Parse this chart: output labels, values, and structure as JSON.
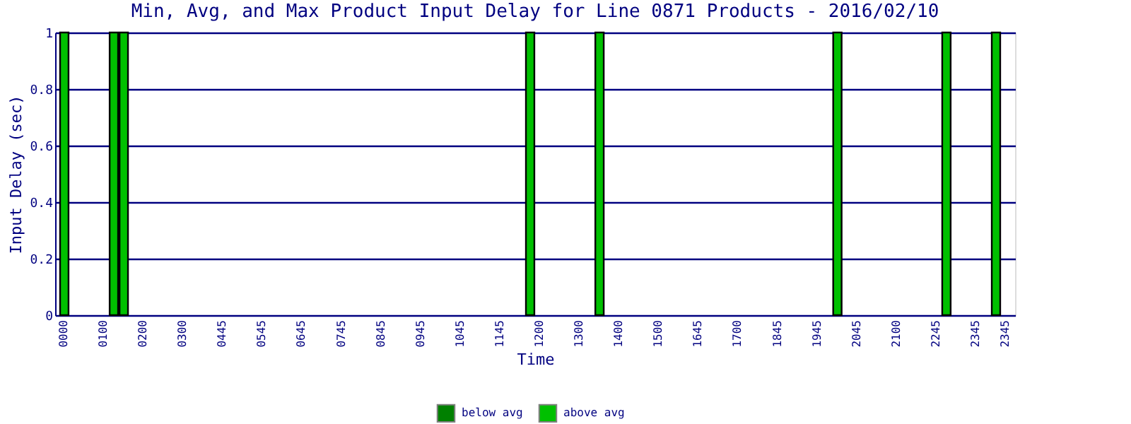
{
  "chart_data": {
    "type": "bar",
    "title": "Min, Avg, and Max Product Input Delay for Line 0871 Products - 2016/02/10",
    "xlabel": "Time",
    "ylabel": "Input Delay (sec)",
    "categories": [
      "0000",
      null,
      null,
      null,
      "0100",
      null,
      null,
      null,
      "0200",
      null,
      null,
      null,
      "0300",
      null,
      null,
      null,
      "0445",
      null,
      null,
      null,
      "0545",
      null,
      null,
      null,
      "0645",
      null,
      null,
      null,
      "0745",
      null,
      null,
      null,
      "0845",
      null,
      null,
      null,
      "0945",
      null,
      null,
      null,
      "1045",
      null,
      null,
      null,
      "1145",
      null,
      null,
      null,
      "1200",
      null,
      null,
      null,
      "1300",
      null,
      null,
      null,
      "1400",
      null,
      null,
      null,
      "1500",
      null,
      null,
      null,
      "1645",
      null,
      null,
      null,
      "1700",
      null,
      null,
      null,
      "1845",
      null,
      null,
      null,
      "1945",
      null,
      null,
      null,
      "2045",
      null,
      null,
      null,
      "2100",
      null,
      null,
      null,
      "2245",
      null,
      null,
      null,
      "2345",
      null,
      null,
      "2345"
    ],
    "series": [
      {
        "name": "below avg",
        "color": "#008000",
        "values": [
          null,
          null,
          null,
          null,
          null,
          null,
          null,
          null,
          null,
          null,
          null,
          null,
          null,
          null,
          null,
          null,
          null,
          null,
          null,
          null,
          null,
          null,
          null,
          null,
          null,
          null,
          null,
          null,
          null,
          null,
          null,
          null,
          null,
          null,
          null,
          null,
          null,
          null,
          null,
          null,
          null,
          null,
          null,
          null,
          null,
          null,
          null,
          null,
          null,
          null,
          null,
          null,
          null,
          null,
          null,
          null,
          null,
          null,
          null,
          null,
          null,
          null,
          null,
          null,
          null,
          null,
          null,
          null,
          null,
          null,
          null,
          null,
          null,
          null,
          null,
          null,
          null,
          null,
          null,
          null,
          null,
          null,
          null,
          null,
          null,
          null,
          null,
          null,
          null,
          null,
          null,
          null,
          null,
          null,
          null,
          null
        ]
      },
      {
        "name": "above avg",
        "color": "#00c000",
        "values": [
          1,
          null,
          null,
          null,
          null,
          1,
          1,
          null,
          null,
          null,
          null,
          null,
          null,
          null,
          null,
          null,
          null,
          null,
          null,
          null,
          null,
          null,
          null,
          null,
          null,
          null,
          null,
          null,
          null,
          null,
          null,
          null,
          null,
          null,
          null,
          null,
          null,
          null,
          null,
          null,
          null,
          null,
          null,
          null,
          null,
          null,
          null,
          1,
          null,
          null,
          null,
          null,
          null,
          null,
          1,
          null,
          null,
          null,
          null,
          null,
          null,
          null,
          null,
          null,
          null,
          null,
          null,
          null,
          null,
          null,
          null,
          null,
          null,
          null,
          null,
          null,
          null,
          null,
          1,
          null,
          null,
          null,
          null,
          null,
          null,
          null,
          null,
          null,
          null,
          1,
          null,
          null,
          null,
          null,
          1,
          null
        ]
      }
    ],
    "ylim": [
      0,
      1
    ],
    "yticks": [
      0,
      0.2,
      0.4,
      0.6,
      0.8,
      1
    ],
    "grid": "y",
    "legend": "bottom"
  }
}
